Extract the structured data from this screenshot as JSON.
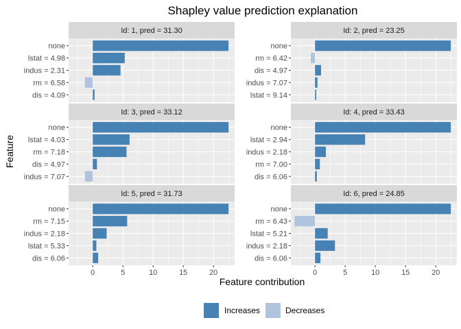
{
  "chart_data": {
    "type": "bar",
    "orientation": "horizontal",
    "title": "Shapley value prediction explanation",
    "xlabel": "Feature contribution",
    "ylabel": "Feature",
    "xlim": [
      -4.0,
      23.5
    ],
    "xticks": [
      0,
      5,
      10,
      15,
      20
    ],
    "legend": {
      "position": "bottom",
      "entries": [
        {
          "label": "Increases",
          "color": "#4682B4"
        },
        {
          "label": "Decreases",
          "color": "#B0C4DE"
        }
      ]
    },
    "colors": {
      "increases": "#4682B4",
      "decreases": "#B0C4DE"
    },
    "panels": [
      {
        "strip": "Id: 1, pred = 31.30",
        "features": [
          {
            "label": "none",
            "value": 22.5
          },
          {
            "label": "lstat = 4.98",
            "value": 5.3
          },
          {
            "label": "indus = 2.31",
            "value": 4.6
          },
          {
            "label": "rm = 6.58",
            "value": -1.3
          },
          {
            "label": "dis = 4.09",
            "value": 0.3
          }
        ]
      },
      {
        "strip": "Id: 2, pred = 23.25",
        "features": [
          {
            "label": "none",
            "value": 22.5
          },
          {
            "label": "rm = 6.42",
            "value": -0.7
          },
          {
            "label": "dis = 4.97",
            "value": 1.0
          },
          {
            "label": "indus = 7.07",
            "value": 0.4
          },
          {
            "label": "lstat = 9.14",
            "value": 0.2
          }
        ]
      },
      {
        "strip": "Id: 3, pred = 33.12",
        "features": [
          {
            "label": "none",
            "value": 22.5
          },
          {
            "label": "lstat = 4.03",
            "value": 6.1
          },
          {
            "label": "rm = 7.18",
            "value": 5.6
          },
          {
            "label": "dis = 4.97",
            "value": 0.7
          },
          {
            "label": "indus = 7.07",
            "value": -1.3
          }
        ]
      },
      {
        "strip": "Id: 4, pred = 33.43",
        "features": [
          {
            "label": "none",
            "value": 22.5
          },
          {
            "label": "lstat = 2.94",
            "value": 8.3
          },
          {
            "label": "indus = 2.18",
            "value": 1.8
          },
          {
            "label": "rm = 7.00",
            "value": 0.8
          },
          {
            "label": "dis = 6.06",
            "value": 0.3
          }
        ]
      },
      {
        "strip": "Id: 5, pred = 31.73",
        "features": [
          {
            "label": "none",
            "value": 22.5
          },
          {
            "label": "rm = 7.15",
            "value": 5.7
          },
          {
            "label": "indus = 2.18",
            "value": 2.3
          },
          {
            "label": "lstat = 5.33",
            "value": 0.6
          },
          {
            "label": "dis = 6.06",
            "value": 0.9
          }
        ]
      },
      {
        "strip": "Id: 6, pred = 24.85",
        "features": [
          {
            "label": "none",
            "value": 22.5
          },
          {
            "label": "rm = 6.43",
            "value": -3.4
          },
          {
            "label": "lstat = 5.21",
            "value": 2.1
          },
          {
            "label": "indus = 2.18",
            "value": 3.3
          },
          {
            "label": "dis = 6.06",
            "value": 0.9
          }
        ]
      }
    ]
  }
}
